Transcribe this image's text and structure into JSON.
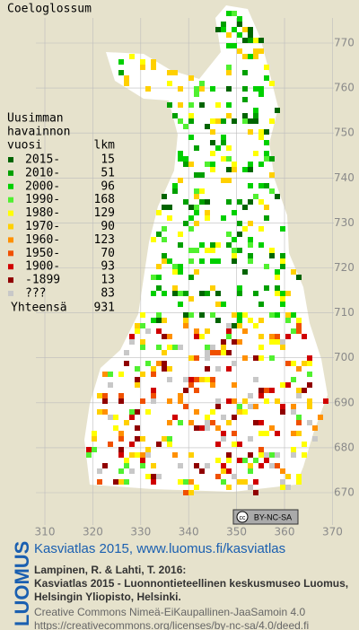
{
  "title": "Coeloglossum",
  "legend": {
    "heading": [
      "Uusimman",
      "havainnon"
    ],
    "col_year": "vuosi",
    "col_count": "lkm",
    "rows": [
      {
        "label": "2015-",
        "count": 15,
        "color": "#006400"
      },
      {
        "label": "2010-",
        "count": 51,
        "color": "#00a000"
      },
      {
        "label": "2000-",
        "count": 96,
        "color": "#00d000"
      },
      {
        "label": "1990-",
        "count": 168,
        "color": "#50f030"
      },
      {
        "label": "1980-",
        "count": 129,
        "color": "#ffff00"
      },
      {
        "label": "1970-",
        "count": 90,
        "color": "#ffd000"
      },
      {
        "label": "1960-",
        "count": 123,
        "color": "#ff9000"
      },
      {
        "label": "1950-",
        "count": 70,
        "color": "#f05000"
      },
      {
        "label": "1900-",
        "count": 93,
        "color": "#d00000"
      },
      {
        "label": "-1899",
        "count": 13,
        "color": "#900000"
      },
      {
        "label": "???",
        "count": 83,
        "color": "#c8c8c8"
      }
    ],
    "total_label": "Yhteensä",
    "total": 931
  },
  "grid": {
    "y_labels": [
      770,
      760,
      750,
      740,
      730,
      720,
      710,
      700,
      690,
      680,
      670
    ],
    "x_labels": [
      310,
      320,
      330,
      340,
      350,
      360,
      370
    ]
  },
  "badge": "BY-NC-SA",
  "footer": {
    "logo": "LUOMUS",
    "headline": "Kasviatlas 2015, www.luomus.fi/kasviatlas",
    "citation": [
      "Lampinen, R. & Lahti, T. 2016:",
      "Kasviatlas 2015 - Luonnontieteellinen keskusmuseo Luomus,",
      "Helsingin Yliopisto, Helsinki."
    ],
    "license": [
      "Creative Commons Nimeä-EiKaupallinen-JaaSamoin 4.0",
      "https://creativecommons.org/licenses/by-nc-sa/4.0/deed.fi"
    ]
  }
}
